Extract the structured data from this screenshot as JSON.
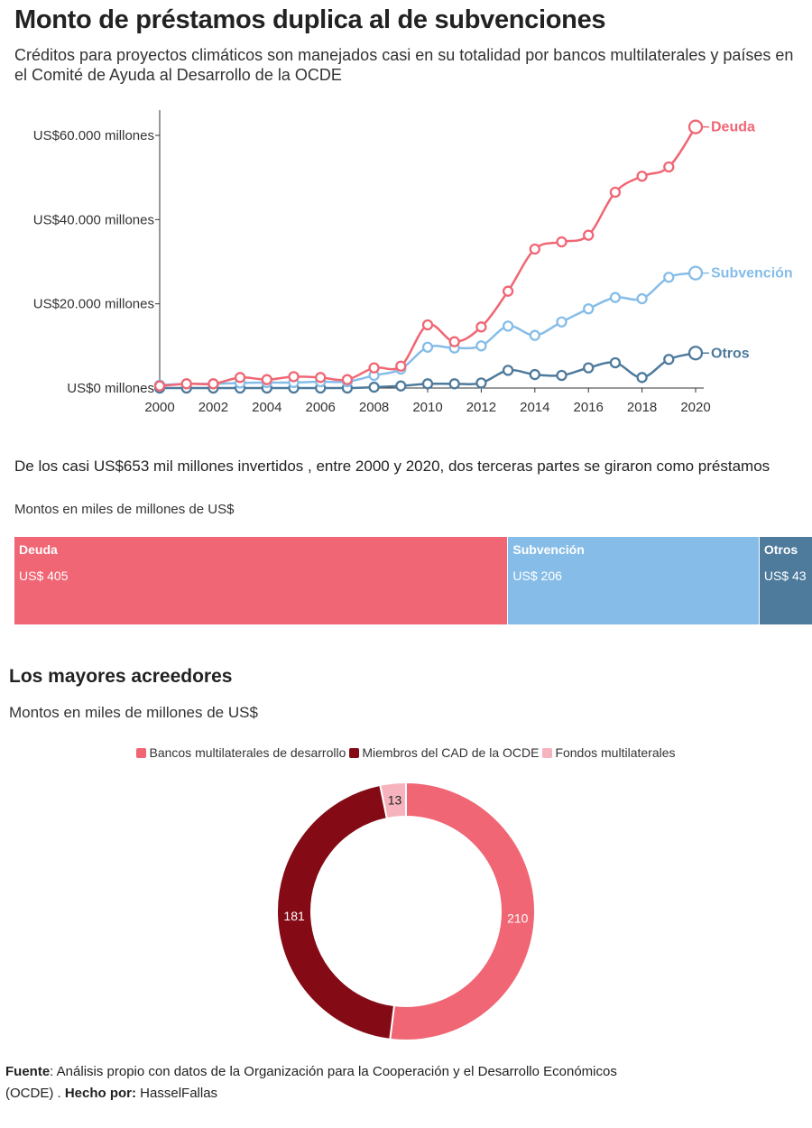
{
  "header": {
    "title": "Monto de préstamos duplica al de subvenciones",
    "subtitle": "Créditos para proyectos climáticos son manejados casi en su totalidad por bancos multilaterales y países en el Comité de Ayuda al Desarrollo de la OCDE"
  },
  "section2": {
    "title": "De los casi US$653 mil millones invertidos , entre 2000 y 2020, dos terceras partes se giraron como préstamos",
    "subtitle": "Montos en miles de millones de US$"
  },
  "section3": {
    "title": "Los mayores acreedores",
    "subtitle": "Montos en miles de millones de US$"
  },
  "source": {
    "label": "Fuente",
    "text": ": Análisis propio con datos de  la Organización para la Cooperación y el Desarrollo Económicos (OCDE)  . ",
    "made_by_label": "Hecho por:",
    "made_by": " HasselFallas"
  },
  "chart_data": [
    {
      "type": "line",
      "x": [
        2000,
        2001,
        2002,
        2003,
        2004,
        2005,
        2006,
        2007,
        2008,
        2009,
        2010,
        2011,
        2012,
        2013,
        2014,
        2015,
        2016,
        2017,
        2018,
        2019,
        2020
      ],
      "series": [
        {
          "name": "Deuda",
          "color": "#f06674",
          "values": [
            500,
            1000,
            1000,
            2500,
            2000,
            2700,
            2500,
            2000,
            4800,
            5200,
            15000,
            11000,
            14500,
            23000,
            33000,
            34700,
            36300,
            46500,
            50300,
            52500,
            62000
          ]
        },
        {
          "name": "Subvención",
          "color": "#86bde8",
          "values": [
            700,
            1000,
            1000,
            1200,
            1300,
            1300,
            1500,
            1500,
            3000,
            4500,
            9700,
            9500,
            10000,
            14700,
            12500,
            15700,
            18800,
            21500,
            21200,
            26300,
            27300
          ]
        },
        {
          "name": "Otros",
          "color": "#4e7a9c",
          "values": [
            0,
            0,
            0,
            0,
            0,
            0,
            0,
            0,
            200,
            500,
            1000,
            1000,
            1200,
            4200,
            3200,
            3000,
            4800,
            6000,
            2500,
            6800,
            8300
          ]
        }
      ],
      "y_ticks": [
        0,
        20000,
        40000,
        60000
      ],
      "y_tick_labels": [
        "US$0 millones",
        "US$20.000 millones",
        "US$40.000 millones",
        "US$60.000 millones"
      ],
      "x_ticks": [
        2000,
        2002,
        2004,
        2006,
        2008,
        2010,
        2012,
        2014,
        2016,
        2018,
        2020
      ],
      "x_tick_labels": [
        "2000",
        "2002",
        "2004",
        "2006",
        "2008",
        "2010",
        "2012",
        "2014",
        "2016",
        "2018",
        "2020"
      ],
      "ylim": [
        0,
        66000
      ],
      "xlim": [
        2000,
        2020.5
      ]
    },
    {
      "type": "bar",
      "orientation": "stacked-horizontal",
      "categories": [
        "Deuda",
        "Subvención",
        "Otros"
      ],
      "values": [
        405,
        206,
        43
      ],
      "value_labels": [
        "US$ 405",
        "US$ 206",
        "US$ 43"
      ],
      "colors": [
        "#f06674",
        "#86bde8",
        "#4e7a9c"
      ]
    },
    {
      "type": "pie",
      "style": "donut",
      "categories": [
        "Bancos multilaterales de desarrollo",
        "Miembros del CAD de la OCDE",
        "Fondos multilaterales"
      ],
      "values": [
        210,
        181,
        13
      ],
      "colors": [
        "#f06674",
        "#840b16",
        "#f7b3bd"
      ],
      "legend": "top-center"
    }
  ]
}
